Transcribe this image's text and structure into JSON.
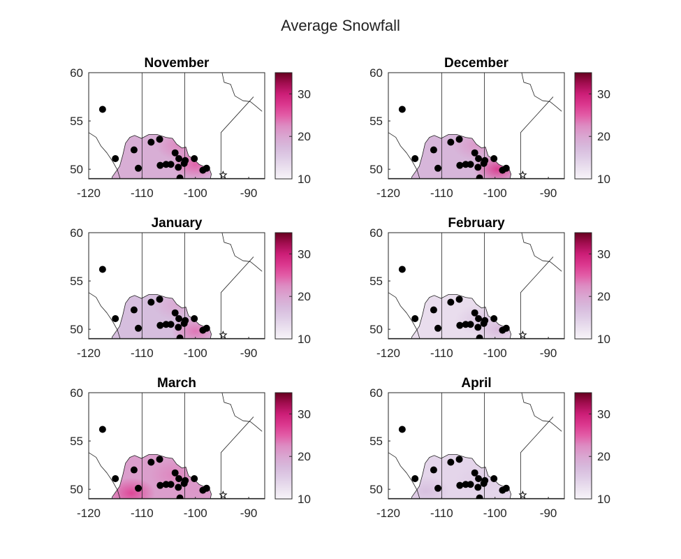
{
  "figure": {
    "title": "Average Snowfall"
  },
  "colorbar": {
    "ticks": [
      10,
      20,
      30
    ],
    "range": [
      10,
      35
    ],
    "colors": [
      "#f7f4f9",
      "#c9a9d4",
      "#e34a9a",
      "#d01c74",
      "#67001f"
    ]
  },
  "chart_data": [
    {
      "type": "heatmap",
      "title": "November",
      "xlim": [
        -120,
        -87
      ],
      "ylim": [
        49,
        60
      ],
      "xticks": [
        -120,
        -110,
        -100,
        -90
      ],
      "yticks": [
        50,
        55,
        60
      ],
      "region_level": 19,
      "hotspots": [
        [
          -100,
          50.5,
          25
        ],
        [
          -103,
          52.5,
          23
        ]
      ],
      "stations": [
        [
          -117.4,
          56.2
        ],
        [
          -115,
          51.1
        ],
        [
          -111.5,
          52
        ],
        [
          -110.7,
          50.1
        ],
        [
          -108.3,
          52.8
        ],
        [
          -106.7,
          53.1
        ],
        [
          -104.6,
          50.5
        ],
        [
          -106.6,
          50.4
        ],
        [
          -105.5,
          50.5
        ],
        [
          -103.8,
          51.7
        ],
        [
          -103.1,
          51.1
        ],
        [
          -103.2,
          50.2
        ],
        [
          -102.1,
          50.6
        ],
        [
          -101.9,
          50.9
        ],
        [
          -100.2,
          51.1
        ],
        [
          -98.6,
          49.9
        ],
        [
          -97.9,
          50.1
        ],
        [
          -102.9,
          49.1
        ]
      ]
    },
    {
      "type": "heatmap",
      "title": "December",
      "xlim": [
        -120,
        -87
      ],
      "ylim": [
        49,
        60
      ],
      "xticks": [
        -120,
        -110,
        -100,
        -90
      ],
      "yticks": [
        50,
        55,
        60
      ],
      "region_level": 18,
      "hotspots": [
        [
          -99.5,
          50,
          28
        ],
        [
          -103.5,
          52.5,
          22
        ]
      ],
      "stations": [
        [
          -117.4,
          56.2
        ],
        [
          -115,
          51.1
        ],
        [
          -111.5,
          52
        ],
        [
          -110.7,
          50.1
        ],
        [
          -108.3,
          52.8
        ],
        [
          -106.7,
          53.1
        ],
        [
          -104.6,
          50.5
        ],
        [
          -106.6,
          50.4
        ],
        [
          -105.5,
          50.5
        ],
        [
          -103.8,
          51.7
        ],
        [
          -103.1,
          51.1
        ],
        [
          -103.2,
          50.2
        ],
        [
          -102.1,
          50.6
        ],
        [
          -101.9,
          50.9
        ],
        [
          -100.2,
          51.1
        ],
        [
          -98.6,
          49.9
        ],
        [
          -97.9,
          50.1
        ],
        [
          -102.9,
          49.1
        ]
      ]
    },
    {
      "type": "heatmap",
      "title": "January",
      "xlim": [
        -120,
        -87
      ],
      "ylim": [
        49,
        60
      ],
      "xticks": [
        -120,
        -110,
        -100,
        -90
      ],
      "yticks": [
        50,
        55,
        60
      ],
      "region_level": 17,
      "hotspots": [
        [
          -100,
          49.8,
          24
        ],
        [
          -103.5,
          52.5,
          20
        ]
      ],
      "stations": [
        [
          -117.4,
          56.2
        ],
        [
          -115,
          51.1
        ],
        [
          -111.5,
          52
        ],
        [
          -110.7,
          50.1
        ],
        [
          -108.3,
          52.8
        ],
        [
          -106.7,
          53.1
        ],
        [
          -104.6,
          50.5
        ],
        [
          -106.6,
          50.4
        ],
        [
          -105.5,
          50.5
        ],
        [
          -103.8,
          51.7
        ],
        [
          -103.1,
          51.1
        ],
        [
          -103.2,
          50.2
        ],
        [
          -102.1,
          50.6
        ],
        [
          -101.9,
          50.9
        ],
        [
          -100.2,
          51.1
        ],
        [
          -98.6,
          49.9
        ],
        [
          -97.9,
          50.1
        ],
        [
          -102.9,
          49.1
        ]
      ]
    },
    {
      "type": "heatmap",
      "title": "February",
      "xlim": [
        -120,
        -87
      ],
      "ylim": [
        49,
        60
      ],
      "xticks": [
        -120,
        -110,
        -100,
        -90
      ],
      "yticks": [
        50,
        55,
        60
      ],
      "region_level": 13,
      "hotspots": [
        [
          -99.5,
          50,
          18
        ],
        [
          -103,
          51,
          16
        ]
      ],
      "stations": [
        [
          -117.4,
          56.2
        ],
        [
          -115,
          51.1
        ],
        [
          -111.5,
          52
        ],
        [
          -110.7,
          50.1
        ],
        [
          -108.3,
          52.8
        ],
        [
          -106.7,
          53.1
        ],
        [
          -104.6,
          50.5
        ],
        [
          -106.6,
          50.4
        ],
        [
          -105.5,
          50.5
        ],
        [
          -103.8,
          51.7
        ],
        [
          -103.1,
          51.1
        ],
        [
          -103.2,
          50.2
        ],
        [
          -102.1,
          50.6
        ],
        [
          -101.9,
          50.9
        ],
        [
          -100.2,
          51.1
        ],
        [
          -98.6,
          49.9
        ],
        [
          -97.9,
          50.1
        ],
        [
          -102.9,
          49.1
        ]
      ]
    },
    {
      "type": "heatmap",
      "title": "March",
      "xlim": [
        -120,
        -87
      ],
      "ylim": [
        49,
        60
      ],
      "xticks": [
        -120,
        -110,
        -100,
        -90
      ],
      "yticks": [
        50,
        55,
        60
      ],
      "region_level": 21,
      "hotspots": [
        [
          -112,
          49.6,
          27
        ],
        [
          -104,
          51.5,
          23
        ],
        [
          -100,
          50,
          22
        ]
      ],
      "stations": [
        [
          -117.4,
          56.2
        ],
        [
          -115,
          51.1
        ],
        [
          -111.5,
          52
        ],
        [
          -110.7,
          50.1
        ],
        [
          -108.3,
          52.8
        ],
        [
          -106.7,
          53.1
        ],
        [
          -104.6,
          50.5
        ],
        [
          -106.6,
          50.4
        ],
        [
          -105.5,
          50.5
        ],
        [
          -103.8,
          51.7
        ],
        [
          -103.1,
          51.1
        ],
        [
          -103.2,
          50.2
        ],
        [
          -102.1,
          50.6
        ],
        [
          -101.9,
          50.9
        ],
        [
          -100.2,
          51.1
        ],
        [
          -98.6,
          49.9
        ],
        [
          -97.9,
          50.1
        ],
        [
          -102.9,
          49.1
        ]
      ]
    },
    {
      "type": "heatmap",
      "title": "April",
      "xlim": [
        -120,
        -87
      ],
      "ylim": [
        49,
        60
      ],
      "xticks": [
        -120,
        -110,
        -100,
        -90
      ],
      "yticks": [
        50,
        55,
        60
      ],
      "region_level": 14,
      "hotspots": [
        [
          -113,
          49.8,
          17
        ],
        [
          -103,
          51,
          15
        ]
      ],
      "stations": [
        [
          -117.4,
          56.2
        ],
        [
          -115,
          51.1
        ],
        [
          -111.5,
          52
        ],
        [
          -110.7,
          50.1
        ],
        [
          -108.3,
          52.8
        ],
        [
          -106.7,
          53.1
        ],
        [
          -104.6,
          50.5
        ],
        [
          -106.6,
          50.4
        ],
        [
          -105.5,
          50.5
        ],
        [
          -103.8,
          51.7
        ],
        [
          -103.1,
          51.1
        ],
        [
          -103.2,
          50.2
        ],
        [
          -102.1,
          50.6
        ],
        [
          -101.9,
          50.9
        ],
        [
          -100.2,
          51.1
        ],
        [
          -98.6,
          49.9
        ],
        [
          -97.9,
          50.1
        ],
        [
          -102.9,
          49.1
        ]
      ]
    }
  ]
}
